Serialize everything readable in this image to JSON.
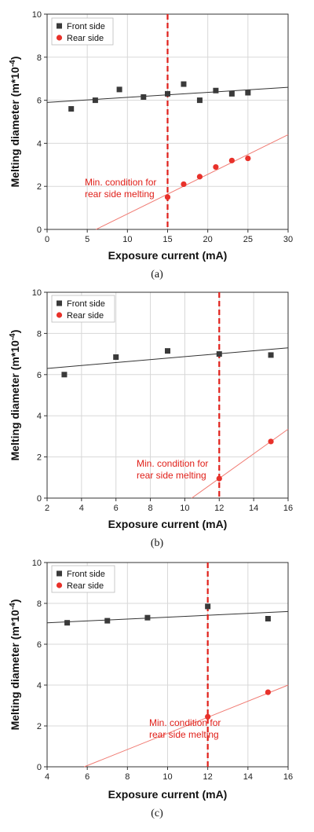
{
  "chart_data": [
    {
      "type": "scatter",
      "caption": "(a)",
      "xlabel": "Exposure current (mA)",
      "ylabel": "Melting diameter (m*10",
      "ylabel_exp": "-4",
      "ylabel_end": ")",
      "xlim": [
        0,
        30
      ],
      "ylim": [
        0,
        10
      ],
      "xticks": [
        0,
        5,
        10,
        15,
        20,
        25,
        30
      ],
      "yticks": [
        0,
        2,
        4,
        6,
        8,
        10
      ],
      "legend_position": "top-left",
      "vline": 15,
      "annotation": [
        "Min. condition for",
        "rear side melting"
      ],
      "series": [
        {
          "name": "Front side",
          "marker": "square",
          "color": "#3a3a3a",
          "x": [
            3,
            6,
            9,
            12,
            15,
            17,
            19,
            21,
            23,
            25
          ],
          "y": [
            5.6,
            6.0,
            6.5,
            6.15,
            6.3,
            6.75,
            6.0,
            6.45,
            6.3,
            6.35
          ],
          "fit": [
            [
              0,
              5.9
            ],
            [
              30,
              6.6
            ]
          ]
        },
        {
          "name": "Rear side",
          "marker": "circle",
          "color": "#e8312a",
          "x": [
            15,
            17,
            19,
            21,
            23,
            25
          ],
          "y": [
            1.5,
            2.1,
            2.45,
            2.9,
            3.2,
            3.3
          ],
          "fit": [
            [
              6.1,
              0
            ],
            [
              30,
              4.4
            ]
          ]
        }
      ]
    },
    {
      "type": "scatter",
      "caption": "(b)",
      "xlabel": "Exposure current (mA)",
      "ylabel": "Melting diameter (m*10",
      "ylabel_exp": "-4",
      "ylabel_end": ")",
      "xlim": [
        2,
        16
      ],
      "ylim": [
        0,
        10
      ],
      "xticks": [
        2,
        4,
        6,
        8,
        10,
        12,
        14,
        16
      ],
      "yticks": [
        0,
        2,
        4,
        6,
        8,
        10
      ],
      "legend_position": "top-left",
      "vline": 12,
      "annotation": [
        "Min. condition for",
        "rear side melting"
      ],
      "series": [
        {
          "name": "Front side",
          "marker": "square",
          "color": "#3a3a3a",
          "x": [
            3,
            6,
            9,
            12,
            15
          ],
          "y": [
            6.0,
            6.85,
            7.15,
            7.0,
            6.95
          ],
          "fit": [
            [
              2,
              6.3
            ],
            [
              16,
              7.3
            ]
          ]
        },
        {
          "name": "Rear side",
          "marker": "circle",
          "color": "#e8312a",
          "x": [
            12,
            15
          ],
          "y": [
            0.95,
            2.75
          ],
          "fit": [
            [
              10.4,
              0
            ],
            [
              16,
              3.35
            ]
          ]
        }
      ]
    },
    {
      "type": "scatter",
      "caption": "(c)",
      "xlabel": "Exposure current (mA)",
      "ylabel": "Melting diameter (m*10",
      "ylabel_exp": "-4",
      "ylabel_end": ")",
      "xlim": [
        4,
        16
      ],
      "ylim": [
        0,
        10
      ],
      "xticks": [
        4,
        6,
        8,
        10,
        12,
        14,
        16
      ],
      "yticks": [
        0,
        2,
        4,
        6,
        8,
        10
      ],
      "legend_position": "top-left",
      "vline": 12,
      "annotation": [
        "Min. condition for",
        "rear side melting"
      ],
      "series": [
        {
          "name": "Front side",
          "marker": "square",
          "color": "#3a3a3a",
          "x": [
            5,
            7,
            9,
            12,
            15
          ],
          "y": [
            7.05,
            7.15,
            7.3,
            7.85,
            7.25
          ],
          "fit": [
            [
              4,
              7.05
            ],
            [
              16,
              7.6
            ]
          ]
        },
        {
          "name": "Rear side",
          "marker": "circle",
          "color": "#e8312a",
          "x": [
            12,
            15
          ],
          "y": [
            2.45,
            3.65
          ],
          "fit": [
            [
              5.85,
              0
            ],
            [
              16,
              4.0
            ]
          ]
        }
      ]
    }
  ]
}
